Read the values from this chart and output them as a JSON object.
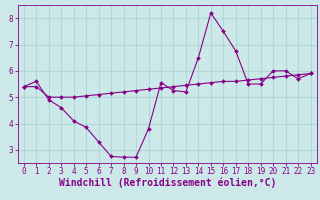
{
  "xlabel": "Windchill (Refroidissement éolien,°C)",
  "bg_color": "#cce8e8",
  "grid_color": "#b0d8d8",
  "line_color": "#880088",
  "xlim": [
    -0.5,
    23.5
  ],
  "ylim": [
    2.5,
    8.5
  ],
  "yticks": [
    3,
    4,
    5,
    6,
    7,
    8
  ],
  "xticks": [
    0,
    1,
    2,
    3,
    4,
    5,
    6,
    7,
    8,
    9,
    10,
    11,
    12,
    13,
    14,
    15,
    16,
    17,
    18,
    19,
    20,
    21,
    22,
    23
  ],
  "line1_x": [
    0,
    1,
    2,
    3,
    4,
    5,
    6,
    7,
    8,
    9,
    10,
    11,
    12,
    13,
    14,
    15,
    16,
    17,
    18,
    19,
    20,
    21,
    22,
    23
  ],
  "line1_y": [
    5.4,
    5.6,
    4.9,
    4.6,
    4.1,
    3.85,
    3.3,
    2.75,
    2.72,
    2.72,
    3.8,
    5.55,
    5.25,
    5.2,
    6.5,
    8.2,
    7.5,
    6.75,
    5.5,
    5.5,
    6.0,
    6.0,
    5.7,
    5.9
  ],
  "line2_x": [
    0,
    1,
    2,
    3,
    4,
    5,
    6,
    7,
    8,
    9,
    10,
    11,
    12,
    13,
    14,
    15,
    16,
    17,
    18,
    19,
    20,
    21,
    22,
    23
  ],
  "line2_y": [
    5.4,
    5.4,
    5.0,
    5.0,
    5.0,
    5.05,
    5.1,
    5.15,
    5.2,
    5.25,
    5.3,
    5.35,
    5.4,
    5.45,
    5.5,
    5.55,
    5.6,
    5.6,
    5.65,
    5.7,
    5.75,
    5.8,
    5.85,
    5.9
  ],
  "tick_fontsize": 5.5,
  "xlabel_fontsize": 7,
  "tick_color": "#880088",
  "xlabel_color": "#880088",
  "axis_color": "#880088",
  "grid_linewidth": 0.8
}
